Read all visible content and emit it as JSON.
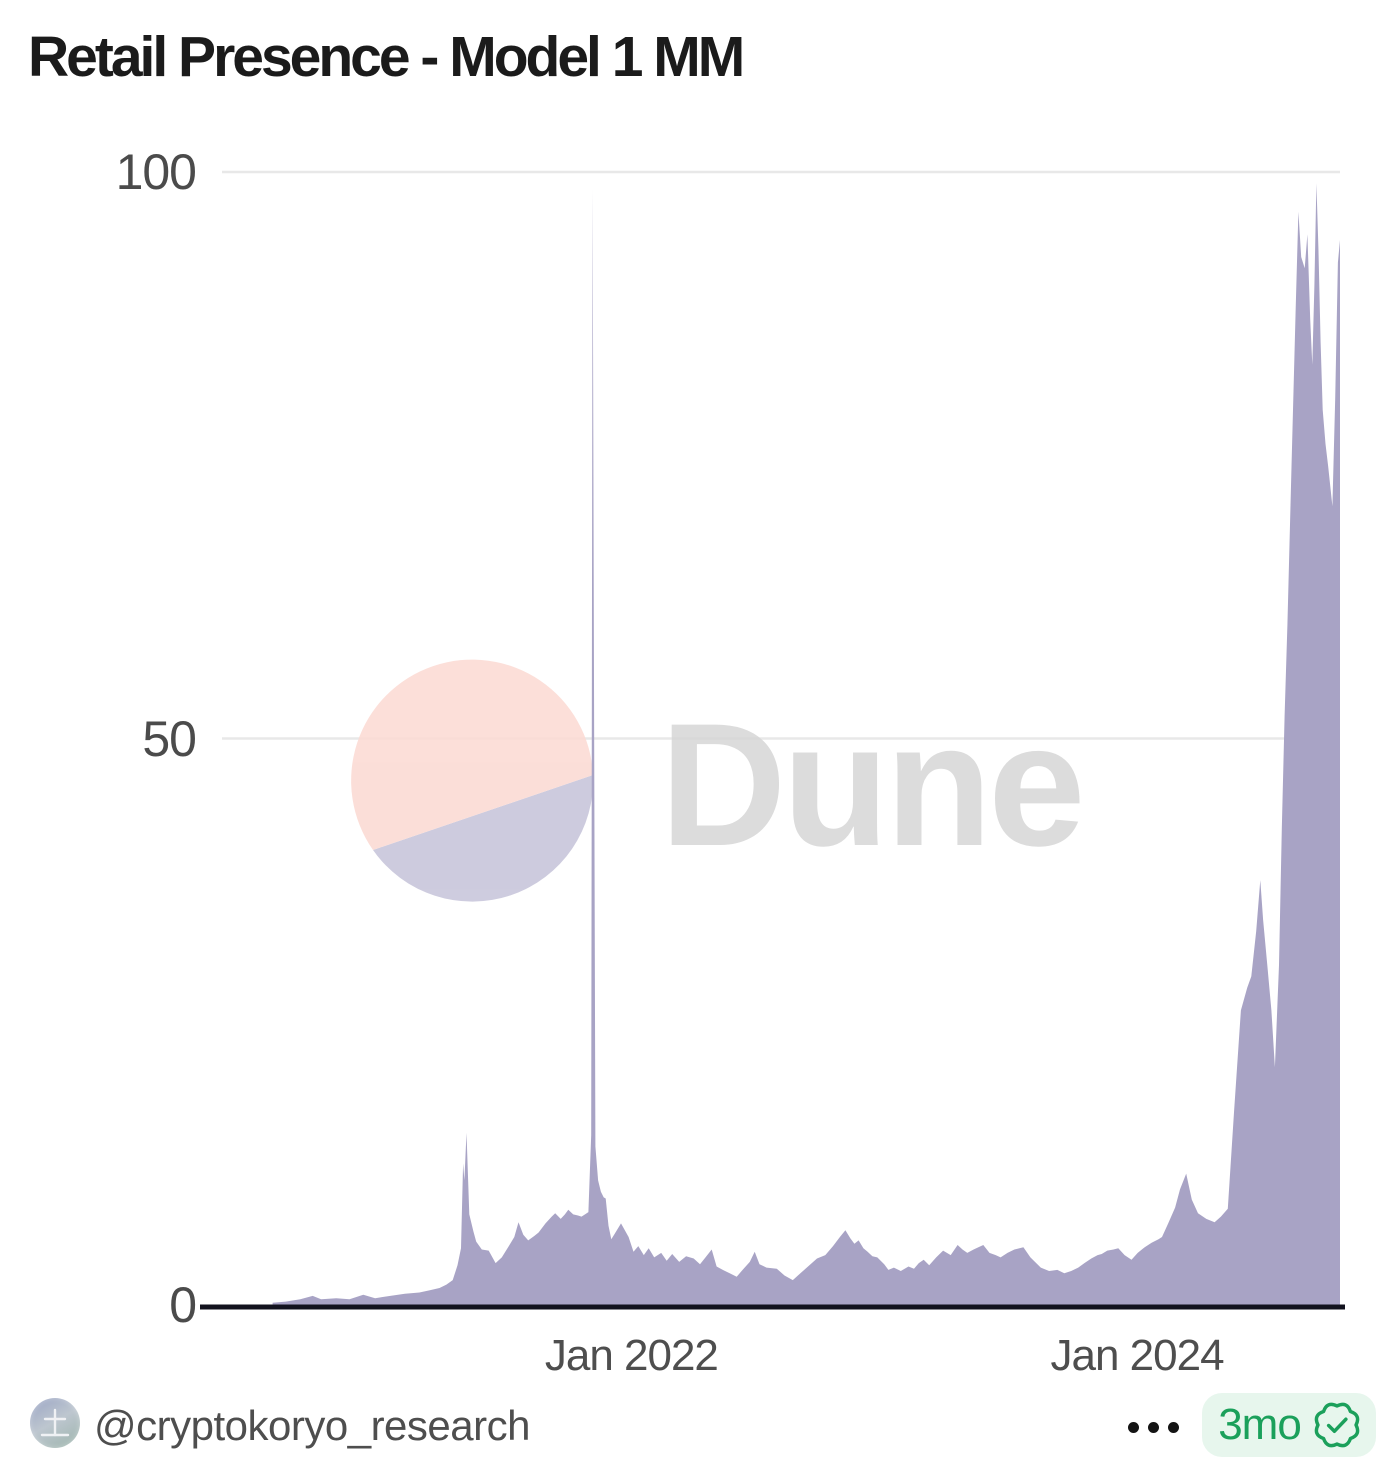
{
  "title": "Retail Presence - Model 1 MM",
  "watermark": {
    "text": "Dune",
    "circle_pink": "#fbd9d2",
    "circle_lavender": "#c5c3d9",
    "text_color": "#d6d6d6"
  },
  "footer": {
    "handle": "@cryptokoryo_research",
    "menu_icon": "ellipsis-icon",
    "badge": {
      "age": "3mo",
      "icon": "verified-seal-icon",
      "text_color": "#1ba05b",
      "bg_color": "#e7f6ed"
    }
  },
  "chart_data": {
    "type": "area",
    "title": "Retail Presence - Model 1 MM",
    "grid": "horizontal",
    "legend": "none",
    "area_color": "#a8a3c5",
    "axis_line_color": "#12121e",
    "grid_color": "#e8e8e8",
    "x_axis": {
      "domain": [
        "2020-05-20",
        "2024-10-20"
      ],
      "ticks": [
        {
          "date": "2022-01-01",
          "label": "Jan 2022"
        },
        {
          "date": "2024-01-01",
          "label": "Jan 2024"
        }
      ]
    },
    "y_axis": {
      "range": [
        0,
        100
      ],
      "ticks": [
        {
          "value": 0,
          "label": "0"
        },
        {
          "value": 50,
          "label": "50"
        },
        {
          "value": 100,
          "label": "100"
        }
      ]
    },
    "series": [
      {
        "name": "Retail Presence - Model 1 MM",
        "color": "#a8a3c5",
        "points": [
          [
            "2020-08-01",
            0.2
          ],
          [
            "2020-08-20",
            0.3
          ],
          [
            "2020-09-10",
            0.5
          ],
          [
            "2020-09-28",
            0.8
          ],
          [
            "2020-10-10",
            0.5
          ],
          [
            "2020-11-01",
            0.6
          ],
          [
            "2020-11-20",
            0.5
          ],
          [
            "2020-12-10",
            0.9
          ],
          [
            "2020-12-27",
            0.6
          ],
          [
            "2021-01-18",
            0.8
          ],
          [
            "2021-02-08",
            1.0
          ],
          [
            "2021-03-01",
            1.1
          ],
          [
            "2021-03-16",
            1.3
          ],
          [
            "2021-03-30",
            1.5
          ],
          [
            "2021-04-09",
            1.8
          ],
          [
            "2021-04-18",
            2.2
          ],
          [
            "2021-04-25",
            3.5
          ],
          [
            "2021-04-30",
            5.0
          ],
          [
            "2021-05-03",
            12.5
          ],
          [
            "2021-05-05",
            11.0
          ],
          [
            "2021-05-08",
            15.2
          ],
          [
            "2021-05-12",
            8.0
          ],
          [
            "2021-05-18",
            6.5
          ],
          [
            "2021-05-22",
            5.6
          ],
          [
            "2021-05-30",
            4.9
          ],
          [
            "2021-06-09",
            4.8
          ],
          [
            "2021-06-19",
            3.7
          ],
          [
            "2021-06-28",
            4.2
          ],
          [
            "2021-07-08",
            5.2
          ],
          [
            "2021-07-16",
            6.0
          ],
          [
            "2021-07-22",
            7.3
          ],
          [
            "2021-07-29",
            6.2
          ],
          [
            "2021-08-05",
            5.7
          ],
          [
            "2021-08-14",
            6.1
          ],
          [
            "2021-08-20",
            6.4
          ],
          [
            "2021-08-30",
            7.2
          ],
          [
            "2021-09-08",
            7.8
          ],
          [
            "2021-09-13",
            8.1
          ],
          [
            "2021-09-21",
            7.6
          ],
          [
            "2021-09-27",
            8.0
          ],
          [
            "2021-10-02",
            8.4
          ],
          [
            "2021-10-09",
            8.0
          ],
          [
            "2021-10-16",
            7.9
          ],
          [
            "2021-10-21",
            7.8
          ],
          [
            "2021-10-26",
            8.0
          ],
          [
            "2021-10-31",
            8.2
          ],
          [
            "2021-11-04",
            15.0
          ],
          [
            "2021-11-06",
            98.5
          ],
          [
            "2021-11-08",
            55.0
          ],
          [
            "2021-11-10",
            14.0
          ],
          [
            "2021-11-14",
            11.0
          ],
          [
            "2021-11-18",
            10.0
          ],
          [
            "2021-11-22",
            9.5
          ],
          [
            "2021-11-25",
            9.4
          ],
          [
            "2021-11-29",
            7.0
          ],
          [
            "2021-12-03",
            5.8
          ],
          [
            "2021-12-08",
            6.3
          ],
          [
            "2021-12-17",
            7.2
          ],
          [
            "2021-12-28",
            6.0
          ],
          [
            "2022-01-04",
            4.7
          ],
          [
            "2022-01-11",
            5.2
          ],
          [
            "2022-01-19",
            4.4
          ],
          [
            "2022-01-26",
            5.0
          ],
          [
            "2022-02-03",
            4.2
          ],
          [
            "2022-02-13",
            4.6
          ],
          [
            "2022-02-21",
            3.9
          ],
          [
            "2022-03-01",
            4.5
          ],
          [
            "2022-03-11",
            3.8
          ],
          [
            "2022-03-21",
            4.3
          ],
          [
            "2022-04-01",
            4.1
          ],
          [
            "2022-04-10",
            3.6
          ],
          [
            "2022-04-18",
            4.2
          ],
          [
            "2022-04-27",
            4.9
          ],
          [
            "2022-05-04",
            3.4
          ],
          [
            "2022-05-13",
            3.1
          ],
          [
            "2022-05-23",
            2.8
          ],
          [
            "2022-06-02",
            2.5
          ],
          [
            "2022-06-12",
            3.2
          ],
          [
            "2022-06-21",
            3.8
          ],
          [
            "2022-06-28",
            4.7
          ],
          [
            "2022-07-05",
            3.6
          ],
          [
            "2022-07-15",
            3.3
          ],
          [
            "2022-07-30",
            3.2
          ],
          [
            "2022-08-10",
            2.6
          ],
          [
            "2022-08-22",
            2.2
          ],
          [
            "2022-09-02",
            2.8
          ],
          [
            "2022-09-13",
            3.4
          ],
          [
            "2022-09-26",
            4.1
          ],
          [
            "2022-10-08",
            4.4
          ],
          [
            "2022-10-19",
            5.2
          ],
          [
            "2022-10-29",
            6.0
          ],
          [
            "2022-11-06",
            6.6
          ],
          [
            "2022-11-13",
            5.9
          ],
          [
            "2022-11-19",
            5.4
          ],
          [
            "2022-11-25",
            5.7
          ],
          [
            "2022-12-02",
            5.0
          ],
          [
            "2022-12-08",
            4.7
          ],
          [
            "2022-12-15",
            4.3
          ],
          [
            "2022-12-22",
            4.2
          ],
          [
            "2023-01-01",
            3.6
          ],
          [
            "2023-01-07",
            3.1
          ],
          [
            "2023-01-15",
            3.3
          ],
          [
            "2023-01-25",
            3.0
          ],
          [
            "2023-02-05",
            3.4
          ],
          [
            "2023-02-13",
            3.2
          ],
          [
            "2023-02-20",
            3.7
          ],
          [
            "2023-02-27",
            4.0
          ],
          [
            "2023-03-07",
            3.5
          ],
          [
            "2023-03-17",
            4.2
          ],
          [
            "2023-03-27",
            4.8
          ],
          [
            "2023-04-07",
            4.4
          ],
          [
            "2023-04-17",
            5.3
          ],
          [
            "2023-04-24",
            4.9
          ],
          [
            "2023-05-01",
            4.6
          ],
          [
            "2023-05-10",
            4.9
          ],
          [
            "2023-05-17",
            5.1
          ],
          [
            "2023-05-24",
            5.3
          ],
          [
            "2023-06-02",
            4.6
          ],
          [
            "2023-06-11",
            4.4
          ],
          [
            "2023-06-18",
            4.2
          ],
          [
            "2023-06-28",
            4.6
          ],
          [
            "2023-07-08",
            4.9
          ],
          [
            "2023-07-21",
            5.1
          ],
          [
            "2023-07-31",
            4.2
          ],
          [
            "2023-08-15",
            3.3
          ],
          [
            "2023-08-27",
            3.0
          ],
          [
            "2023-09-08",
            3.1
          ],
          [
            "2023-09-18",
            2.8
          ],
          [
            "2023-09-28",
            3.0
          ],
          [
            "2023-10-08",
            3.3
          ],
          [
            "2023-10-17",
            3.7
          ],
          [
            "2023-10-27",
            4.1
          ],
          [
            "2023-11-05",
            4.4
          ],
          [
            "2023-11-11",
            4.5
          ],
          [
            "2023-11-19",
            4.8
          ],
          [
            "2023-11-28",
            4.9
          ],
          [
            "2023-12-05",
            5.0
          ],
          [
            "2023-12-14",
            4.4
          ],
          [
            "2023-12-24",
            4.0
          ],
          [
            "2024-01-02",
            4.6
          ],
          [
            "2024-01-12",
            5.1
          ],
          [
            "2024-01-22",
            5.5
          ],
          [
            "2024-02-01",
            5.8
          ],
          [
            "2024-02-06",
            6.0
          ],
          [
            "2024-02-15",
            7.2
          ],
          [
            "2024-02-25",
            8.6
          ],
          [
            "2024-03-03",
            10.2
          ],
          [
            "2024-03-12",
            11.6
          ],
          [
            "2024-03-20",
            9.3
          ],
          [
            "2024-03-29",
            8.1
          ],
          [
            "2024-04-10",
            7.6
          ],
          [
            "2024-04-22",
            7.3
          ],
          [
            "2024-05-01",
            7.8
          ],
          [
            "2024-05-11",
            8.5
          ],
          [
            "2024-05-20",
            17.0
          ],
          [
            "2024-05-30",
            26.0
          ],
          [
            "2024-06-08",
            28.0
          ],
          [
            "2024-06-14",
            29.0
          ],
          [
            "2024-06-21",
            33.0
          ],
          [
            "2024-06-27",
            37.5
          ],
          [
            "2024-07-01",
            34.0
          ],
          [
            "2024-07-07",
            30.0
          ],
          [
            "2024-07-13",
            26.0
          ],
          [
            "2024-07-18",
            21.0
          ],
          [
            "2024-07-24",
            30.0
          ],
          [
            "2024-07-28",
            42.0
          ],
          [
            "2024-08-01",
            52.0
          ],
          [
            "2024-08-05",
            60.0
          ],
          [
            "2024-08-11",
            74.0
          ],
          [
            "2024-08-17",
            88.0
          ],
          [
            "2024-08-21",
            96.5
          ],
          [
            "2024-08-25",
            92.5
          ],
          [
            "2024-08-30",
            91.5
          ],
          [
            "2024-09-03",
            94.5
          ],
          [
            "2024-09-07",
            87.0
          ],
          [
            "2024-09-10",
            83.0
          ],
          [
            "2024-09-13",
            90.0
          ],
          [
            "2024-09-16",
            99.0
          ],
          [
            "2024-09-19",
            93.0
          ],
          [
            "2024-09-22",
            85.0
          ],
          [
            "2024-09-25",
            79.0
          ],
          [
            "2024-09-29",
            76.0
          ],
          [
            "2024-10-03",
            74.0
          ],
          [
            "2024-10-09",
            70.5
          ],
          [
            "2024-10-13",
            80.0
          ],
          [
            "2024-10-17",
            92.0
          ],
          [
            "2024-10-20",
            94.0
          ]
        ]
      }
    ]
  }
}
